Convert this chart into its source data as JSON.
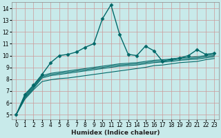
{
  "xlabel": "Humidex (Indice chaleur)",
  "ylabel": "",
  "bg_color": "#c8eaea",
  "grid_color": "#cc9999",
  "line_color": "#006868",
  "xlim": [
    -0.5,
    23.5
  ],
  "ylim": [
    4.6,
    14.5
  ],
  "yticks": [
    5,
    6,
    7,
    8,
    9,
    10,
    11,
    12,
    13,
    14
  ],
  "xticks": [
    0,
    1,
    2,
    3,
    4,
    5,
    6,
    7,
    8,
    9,
    10,
    11,
    12,
    13,
    14,
    15,
    16,
    17,
    18,
    19,
    20,
    21,
    22,
    23
  ],
  "series": [
    {
      "x": [
        0,
        1,
        2,
        3,
        4,
        5,
        6,
        7,
        8,
        9,
        10,
        11,
        12,
        13,
        14,
        15,
        16,
        17,
        18,
        19,
        20,
        21,
        22,
        23
      ],
      "y": [
        5.0,
        6.7,
        7.5,
        8.4,
        9.4,
        10.0,
        10.1,
        10.3,
        10.7,
        11.0,
        13.1,
        14.3,
        11.8,
        10.1,
        10.0,
        10.8,
        10.4,
        9.5,
        9.7,
        9.8,
        10.0,
        10.5,
        10.1,
        10.2
      ],
      "marker": "D",
      "markersize": 2.5,
      "linewidth": 1.0,
      "zorder": 5
    },
    {
      "x": [
        0,
        1,
        2,
        3,
        4,
        5,
        6,
        7,
        8,
        9,
        10,
        11,
        12,
        13,
        14,
        15,
        16,
        17,
        18,
        19,
        20,
        21,
        22,
        23
      ],
      "y": [
        5.0,
        6.6,
        7.4,
        8.3,
        8.5,
        8.6,
        8.7,
        8.8,
        8.9,
        9.0,
        9.1,
        9.2,
        9.3,
        9.35,
        9.4,
        9.5,
        9.6,
        9.65,
        9.7,
        9.8,
        9.85,
        9.9,
        10.0,
        10.1
      ],
      "marker": null,
      "markersize": 0,
      "linewidth": 0.8,
      "zorder": 3
    },
    {
      "x": [
        0,
        1,
        2,
        3,
        4,
        5,
        6,
        7,
        8,
        9,
        10,
        11,
        12,
        13,
        14,
        15,
        16,
        17,
        18,
        19,
        20,
        21,
        22,
        23
      ],
      "y": [
        5.0,
        6.5,
        7.3,
        8.2,
        8.4,
        8.5,
        8.6,
        8.7,
        8.8,
        8.9,
        9.0,
        9.1,
        9.2,
        9.25,
        9.3,
        9.4,
        9.5,
        9.55,
        9.6,
        9.7,
        9.75,
        9.8,
        9.9,
        10.0
      ],
      "marker": null,
      "markersize": 0,
      "linewidth": 0.8,
      "zorder": 3
    },
    {
      "x": [
        0,
        1,
        2,
        3,
        4,
        5,
        6,
        7,
        8,
        9,
        10,
        11,
        12,
        13,
        14,
        15,
        16,
        17,
        18,
        19,
        20,
        21,
        22,
        23
      ],
      "y": [
        5.0,
        6.4,
        7.2,
        8.1,
        8.3,
        8.4,
        8.5,
        8.6,
        8.7,
        8.8,
        8.9,
        9.0,
        9.1,
        9.15,
        9.2,
        9.3,
        9.4,
        9.45,
        9.5,
        9.6,
        9.65,
        9.7,
        9.8,
        9.9
      ],
      "marker": null,
      "markersize": 0,
      "linewidth": 0.8,
      "zorder": 3
    },
    {
      "x": [
        0,
        1,
        2,
        3,
        4,
        5,
        6,
        7,
        8,
        9,
        10,
        11,
        12,
        13,
        14,
        15,
        16,
        17,
        18,
        19,
        20,
        21,
        22,
        23
      ],
      "y": [
        5.0,
        6.3,
        7.1,
        7.8,
        7.95,
        8.05,
        8.1,
        8.2,
        8.3,
        8.4,
        8.5,
        8.6,
        8.7,
        8.8,
        8.9,
        9.0,
        9.15,
        9.2,
        9.3,
        9.4,
        9.45,
        9.5,
        9.65,
        9.75
      ],
      "marker": null,
      "markersize": 0,
      "linewidth": 0.8,
      "zorder": 3
    }
  ]
}
